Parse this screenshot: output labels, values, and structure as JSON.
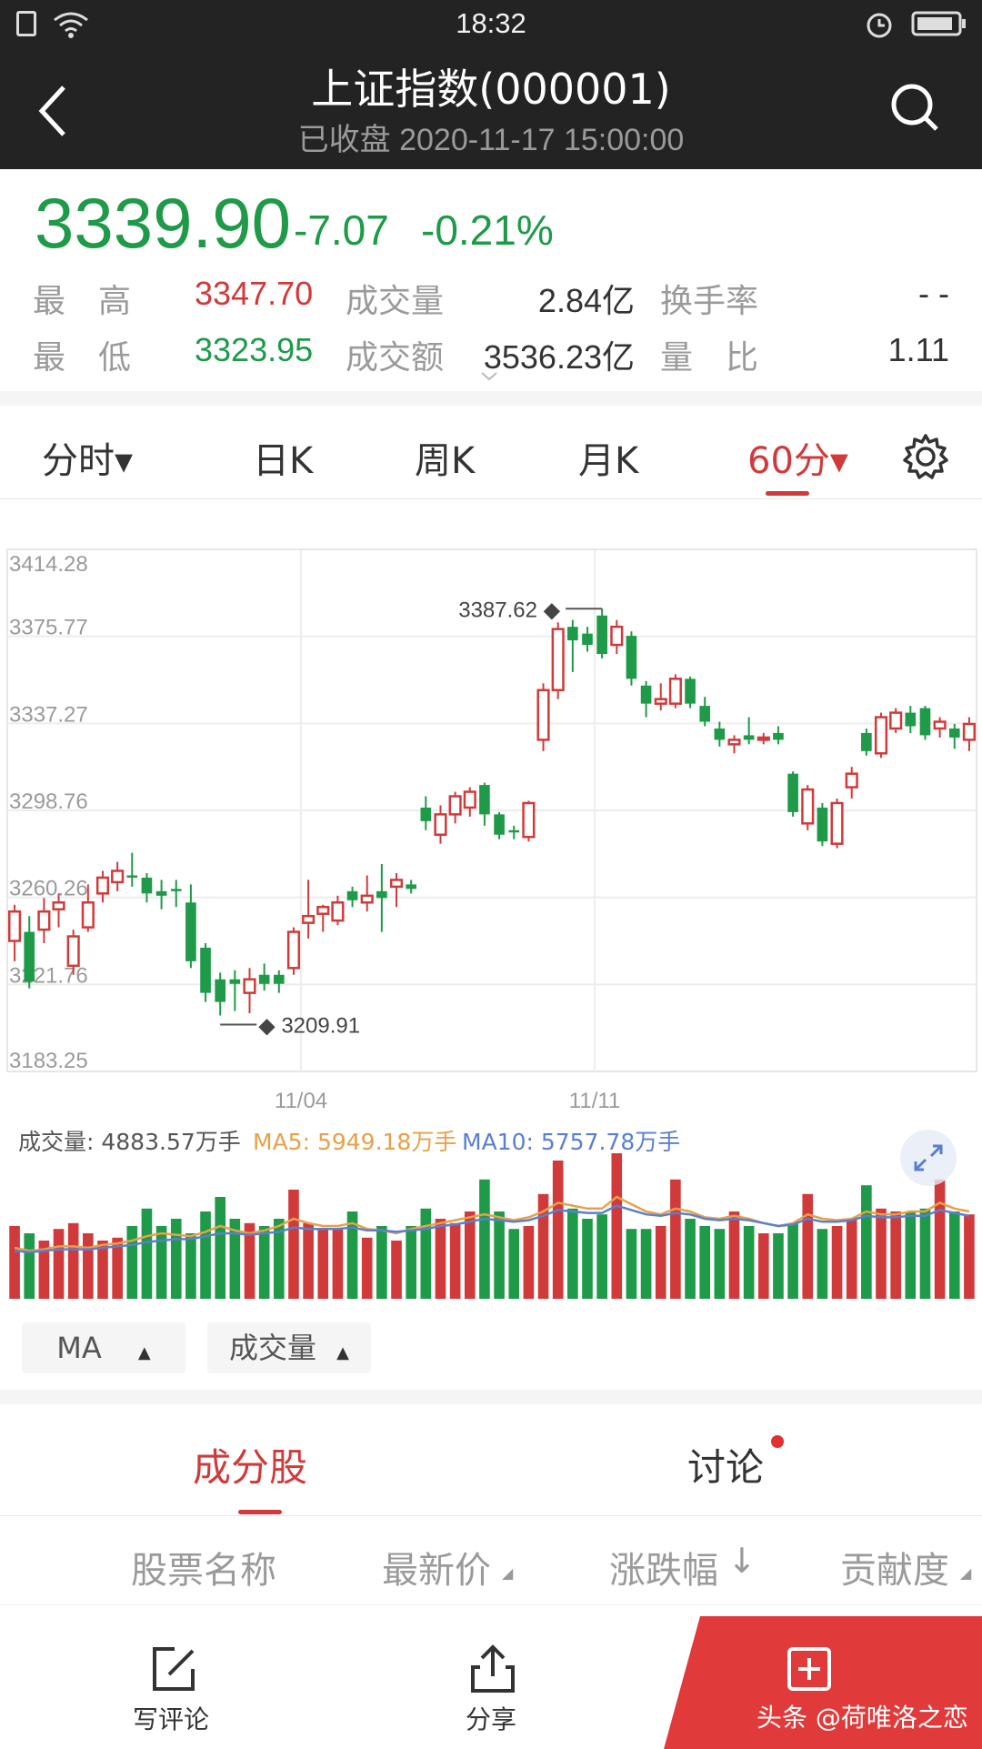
{
  "status": {
    "time": "18:32"
  },
  "header": {
    "title": "上证指数(000001)",
    "subtitle": "已收盘 2020-11-17 15:00:00"
  },
  "quote": {
    "price": "3339.90",
    "change": "-7.07",
    "change_pct": "-0.21%",
    "high_label": "最　高",
    "high_value": "3347.70",
    "low_label": "最　低",
    "low_value": "3323.95",
    "volume_label": "成交量",
    "volume_value": "2.84亿",
    "amount_label": "成交额",
    "amount_value": "3536.23亿",
    "turnover_label": "换手率",
    "turnover_value": "- -",
    "ratio_label": "量　比",
    "ratio_value": "1.11",
    "up_color": "#d03a3a",
    "down_color": "#1e9a48"
  },
  "period_tabs": [
    {
      "label": "分时▾"
    },
    {
      "label": "日K"
    },
    {
      "label": "周K"
    },
    {
      "label": "月K"
    },
    {
      "label": "60分▾",
      "active": true
    }
  ],
  "chart_data": {
    "type": "candlestick",
    "y_ticks": [
      "3414.28",
      "3375.77",
      "3337.27",
      "3298.76",
      "3260.26",
      "3221.76",
      "3183.25"
    ],
    "ylim": [
      3183.25,
      3414.28
    ],
    "x_ticks": [
      "11/04",
      "11/11"
    ],
    "max_annotation": "3387.62",
    "min_annotation": "3209.91",
    "candles": [
      [
        3241,
        3254,
        3232,
        3257
      ],
      [
        3245,
        3223,
        3220,
        3252
      ],
      [
        3246,
        3254,
        3240,
        3260
      ],
      [
        3255,
        3258,
        3247,
        3262
      ],
      [
        3230,
        3243,
        3226,
        3246
      ],
      [
        3247,
        3258,
        3245,
        3266
      ],
      [
        3262,
        3269,
        3258,
        3272
      ],
      [
        3267,
        3272,
        3263,
        3276
      ],
      [
        3270,
        3269,
        3265,
        3280
      ],
      [
        3269,
        3262,
        3258,
        3271
      ],
      [
        3263,
        3261,
        3255,
        3268
      ],
      [
        3264,
        3263,
        3256,
        3268
      ],
      [
        3258,
        3232,
        3229,
        3266
      ],
      [
        3238,
        3218,
        3214,
        3240
      ],
      [
        3224,
        3214,
        3208,
        3227
      ],
      [
        3224,
        3222,
        3210,
        3228
      ],
      [
        3218,
        3224,
        3209,
        3229
      ],
      [
        3226,
        3222,
        3219,
        3231
      ],
      [
        3226,
        3222,
        3218,
        3228
      ],
      [
        3229,
        3245,
        3226,
        3247
      ],
      [
        3249,
        3252,
        3242,
        3268
      ],
      [
        3253,
        3256,
        3245,
        3257
      ],
      [
        3250,
        3258,
        3248,
        3261
      ],
      [
        3263,
        3259,
        3256,
        3265
      ],
      [
        3258,
        3261,
        3254,
        3270
      ],
      [
        3263,
        3260,
        3245,
        3275
      ],
      [
        3265,
        3268,
        3256,
        3271
      ],
      [
        3266,
        3264,
        3262,
        3268
      ],
      [
        3300,
        3294,
        3290,
        3305
      ],
      [
        3288,
        3297,
        3284,
        3301
      ],
      [
        3297,
        3305,
        3293,
        3307
      ],
      [
        3300,
        3307,
        3296,
        3309
      ],
      [
        3310,
        3297,
        3292,
        3311
      ],
      [
        3297,
        3288,
        3286,
        3298
      ],
      [
        3290,
        3289,
        3286,
        3292
      ],
      [
        3287,
        3302,
        3285,
        3303
      ],
      [
        3330,
        3352,
        3325,
        3355
      ],
      [
        3352,
        3379,
        3348,
        3382
      ],
      [
        3380,
        3374,
        3360,
        3383
      ],
      [
        3377,
        3372,
        3369,
        3380
      ],
      [
        3385,
        3368,
        3366,
        3388
      ],
      [
        3372,
        3380,
        3368,
        3383
      ],
      [
        3376,
        3357,
        3354,
        3378
      ],
      [
        3354,
        3346,
        3340,
        3356
      ],
      [
        3346,
        3348,
        3343,
        3355
      ],
      [
        3346,
        3357,
        3344,
        3359
      ],
      [
        3357,
        3346,
        3344,
        3358
      ],
      [
        3345,
        3338,
        3336,
        3349
      ],
      [
        3335,
        3330,
        3327,
        3338
      ],
      [
        3328,
        3330,
        3324,
        3332
      ],
      [
        3332,
        3330,
        3328,
        3340
      ],
      [
        3330,
        3331,
        3328,
        3333
      ],
      [
        3333,
        3330,
        3328,
        3336
      ],
      [
        3315,
        3298,
        3296,
        3316
      ],
      [
        3293,
        3308,
        3290,
        3310
      ],
      [
        3300,
        3285,
        3283,
        3302
      ],
      [
        3284,
        3302,
        3282,
        3304
      ],
      [
        3309,
        3315,
        3304,
        3318
      ],
      [
        3333,
        3325,
        3323,
        3335
      ],
      [
        3324,
        3340,
        3322,
        3342
      ],
      [
        3335,
        3342,
        3333,
        3344
      ],
      [
        3342,
        3336,
        3333,
        3345
      ],
      [
        3344,
        3332,
        3330,
        3345
      ],
      [
        3335,
        3338,
        3331,
        3340
      ],
      [
        3335,
        3331,
        3326,
        3337
      ],
      [
        3330,
        3337,
        3325,
        3340
      ]
    ],
    "volume_label": "成交量: 4883.57万手",
    "ma5_label": "MA5: 5949.18万手",
    "ma10_label": "MA10: 5757.78万手",
    "ma5_color": "#e8a048",
    "ma10_color": "#5a7fd0",
    "volumes": [
      0.5,
      0.45,
      0.4,
      0.48,
      0.52,
      0.45,
      0.4,
      0.42,
      0.5,
      0.62,
      0.5,
      0.55,
      0.45,
      0.6,
      0.7,
      0.55,
      0.52,
      0.5,
      0.55,
      0.75,
      0.52,
      0.48,
      0.48,
      0.6,
      0.42,
      0.5,
      0.4,
      0.5,
      0.62,
      0.55,
      0.52,
      0.6,
      0.82,
      0.6,
      0.48,
      0.5,
      0.72,
      0.95,
      0.62,
      0.55,
      0.58,
      1.0,
      0.48,
      0.48,
      0.5,
      0.82,
      0.55,
      0.5,
      0.48,
      0.6,
      0.5,
      0.45,
      0.45,
      0.52,
      0.72,
      0.48,
      0.5,
      0.55,
      0.78,
      0.62,
      0.6,
      0.6,
      0.62,
      0.82,
      0.6,
      0.58
    ],
    "ma5": [
      0.35,
      0.33,
      0.34,
      0.36,
      0.36,
      0.35,
      0.37,
      0.38,
      0.4,
      0.43,
      0.45,
      0.44,
      0.43,
      0.46,
      0.5,
      0.47,
      0.45,
      0.47,
      0.5,
      0.55,
      0.52,
      0.5,
      0.5,
      0.52,
      0.48,
      0.47,
      0.45,
      0.48,
      0.5,
      0.52,
      0.54,
      0.56,
      0.58,
      0.56,
      0.54,
      0.56,
      0.6,
      0.66,
      0.64,
      0.62,
      0.62,
      0.7,
      0.65,
      0.6,
      0.58,
      0.62,
      0.6,
      0.56,
      0.55,
      0.57,
      0.55,
      0.52,
      0.5,
      0.52,
      0.58,
      0.55,
      0.54,
      0.55,
      0.6,
      0.58,
      0.58,
      0.6,
      0.6,
      0.66,
      0.62,
      0.6
    ],
    "ma10": [
      0.33,
      0.32,
      0.33,
      0.34,
      0.34,
      0.34,
      0.35,
      0.36,
      0.37,
      0.39,
      0.4,
      0.41,
      0.41,
      0.43,
      0.45,
      0.45,
      0.44,
      0.45,
      0.46,
      0.49,
      0.48,
      0.48,
      0.48,
      0.49,
      0.47,
      0.47,
      0.46,
      0.47,
      0.48,
      0.5,
      0.51,
      0.53,
      0.55,
      0.54,
      0.53,
      0.54,
      0.57,
      0.61,
      0.6,
      0.59,
      0.59,
      0.64,
      0.61,
      0.58,
      0.57,
      0.59,
      0.58,
      0.55,
      0.54,
      0.55,
      0.54,
      0.52,
      0.5,
      0.51,
      0.55,
      0.53,
      0.53,
      0.54,
      0.57,
      0.56,
      0.56,
      0.57,
      0.57,
      0.61,
      0.59,
      0.57
    ]
  },
  "indicators": {
    "ma": "MA",
    "volume": "成交量"
  },
  "sections": {
    "constituents": "成分股",
    "discussion": "讨论"
  },
  "columns": {
    "name": "股票名称",
    "price": "最新价",
    "change": "涨跌幅",
    "contribution": "贡献度"
  },
  "bottom": {
    "comment": "写评论",
    "share": "分享",
    "watermark": "头条 @荷唯洛之恋"
  }
}
